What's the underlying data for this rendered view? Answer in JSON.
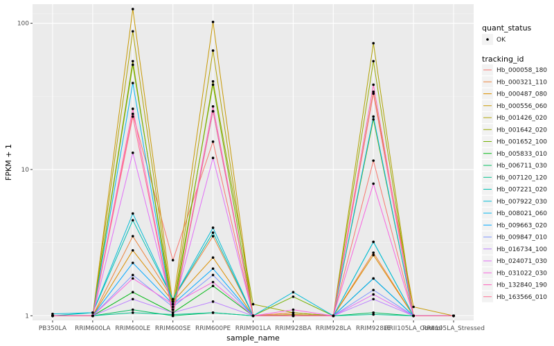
{
  "chart_data": {
    "type": "line",
    "xlabel": "sample_name",
    "ylabel": "FPKM + 1",
    "y_scale": "log10",
    "ylim": [
      0.93,
      135
    ],
    "y_ticks": [
      1,
      10,
      100
    ],
    "y_tick_labels": [
      "1",
      "10",
      "100"
    ],
    "grid": true,
    "legend_position": "right",
    "categories": [
      "PB350LA",
      "RRIM600LA",
      "RRIM600LE",
      "RRIM600SE",
      "RRIM600PE",
      "RRIM901LA",
      "RRIM928BA",
      "RRIM928LA",
      "RRIM928LE",
      "RRII105LA_Control",
      "RRII105LA_Stressed"
    ],
    "quant_legend": {
      "title": "quant_status",
      "entries": [
        "OK"
      ]
    },
    "series_legend_title": "tracking_id",
    "series": [
      {
        "name": "Hb_000058_180",
        "color": "#F8766D",
        "values": [
          1.0,
          1.0,
          24.0,
          2.4,
          15.5,
          1.0,
          1.05,
          1.0,
          11.5,
          1.0,
          1.0
        ]
      },
      {
        "name": "Hb_000321_110",
        "color": "#EC8239",
        "values": [
          1.0,
          1.0,
          3.5,
          1.3,
          3.5,
          1.0,
          1.05,
          1.0,
          2.7,
          1.0,
          1.0
        ]
      },
      {
        "name": "Hb_000487_080",
        "color": "#DB8E00",
        "values": [
          1.0,
          1.0,
          2.8,
          1.25,
          2.5,
          1.0,
          1.02,
          1.0,
          2.6,
          1.0,
          1.0
        ]
      },
      {
        "name": "Hb_000556_060",
        "color": "#C79800",
        "values": [
          1.0,
          1.0,
          125.0,
          1.2,
          102.0,
          1.0,
          1.02,
          1.0,
          34.0,
          1.15,
          1.0
        ]
      },
      {
        "name": "Hb_001426_020",
        "color": "#AFA100",
        "values": [
          1.0,
          1.0,
          88.0,
          1.1,
          65.0,
          1.0,
          1.0,
          1.0,
          73.0,
          1.0,
          1.0
        ]
      },
      {
        "name": "Hb_001642_020",
        "color": "#96A900",
        "values": [
          1.0,
          1.0,
          55.0,
          1.0,
          40.0,
          1.2,
          1.05,
          1.0,
          55.0,
          1.0,
          1.0
        ]
      },
      {
        "name": "Hb_001652_100",
        "color": "#72B000",
        "values": [
          1.0,
          1.0,
          52.0,
          1.1,
          38.0,
          1.0,
          1.35,
          1.0,
          22.0,
          1.0,
          1.0
        ]
      },
      {
        "name": "Hb_005833_010",
        "color": "#00B813",
        "values": [
          1.0,
          1.0,
          1.45,
          1.05,
          1.6,
          1.0,
          1.0,
          1.0,
          1.8,
          1.0,
          1.0
        ]
      },
      {
        "name": "Hb_006711_030",
        "color": "#00BD5C",
        "values": [
          1.0,
          1.0,
          1.1,
          1.0,
          1.05,
          1.0,
          1.0,
          1.0,
          1.05,
          1.0,
          1.0
        ]
      },
      {
        "name": "Hb_007120_120",
        "color": "#00C08D",
        "values": [
          1.0,
          1.0,
          1.05,
          1.02,
          1.05,
          1.0,
          1.0,
          1.0,
          1.02,
          1.0,
          1.0
        ]
      },
      {
        "name": "Hb_007221_020",
        "color": "#00BFB1",
        "values": [
          1.0,
          1.05,
          4.5,
          1.3,
          3.7,
          1.0,
          1.0,
          1.0,
          3.2,
          1.0,
          1.0
        ]
      },
      {
        "name": "Hb_007922_030",
        "color": "#00BCD6",
        "values": [
          1.03,
          1.05,
          5.0,
          1.3,
          4.0,
          1.0,
          1.45,
          1.0,
          3.2,
          1.0,
          1.0
        ]
      },
      {
        "name": "Hb_008021_060",
        "color": "#00B5EE",
        "values": [
          1.0,
          1.0,
          39.0,
          1.0,
          25.0,
          1.0,
          1.0,
          1.0,
          23.0,
          1.0,
          1.0
        ]
      },
      {
        "name": "Hb_009663_020",
        "color": "#00A8FF",
        "values": [
          1.0,
          1.0,
          2.3,
          1.2,
          2.1,
          1.0,
          1.0,
          1.0,
          1.8,
          1.0,
          1.0
        ]
      },
      {
        "name": "Hb_009847_010",
        "color": "#7F96FF",
        "values": [
          1.0,
          1.0,
          1.9,
          1.15,
          1.9,
          1.0,
          1.0,
          1.0,
          1.5,
          1.0,
          1.0
        ]
      },
      {
        "name": "Hb_016734_100",
        "color": "#BC81FF",
        "values": [
          1.0,
          1.0,
          1.3,
          1.05,
          1.25,
          1.0,
          1.0,
          1.0,
          1.3,
          1.0,
          1.0
        ]
      },
      {
        "name": "Hb_024071_030",
        "color": "#E26EF7",
        "values": [
          1.0,
          1.0,
          13.0,
          1.1,
          12.0,
          1.0,
          1.0,
          1.0,
          1.4,
          1.0,
          1.0
        ]
      },
      {
        "name": "Hb_031022_030",
        "color": "#F863DF",
        "values": [
          1.0,
          1.0,
          1.8,
          1.2,
          1.7,
          1.0,
          1.1,
          1.0,
          8.0,
          1.0,
          1.0
        ]
      },
      {
        "name": "Hb_132840_190",
        "color": "#FF62BC",
        "values": [
          1.0,
          1.0,
          26.0,
          1.0,
          27.0,
          1.0,
          1.0,
          1.0,
          38.0,
          1.0,
          1.0
        ]
      },
      {
        "name": "Hb_163566_010",
        "color": "#FF6C91",
        "values": [
          1.0,
          1.0,
          23.0,
          1.0,
          25.0,
          1.0,
          1.0,
          1.0,
          33.0,
          1.0,
          1.0
        ]
      }
    ]
  }
}
